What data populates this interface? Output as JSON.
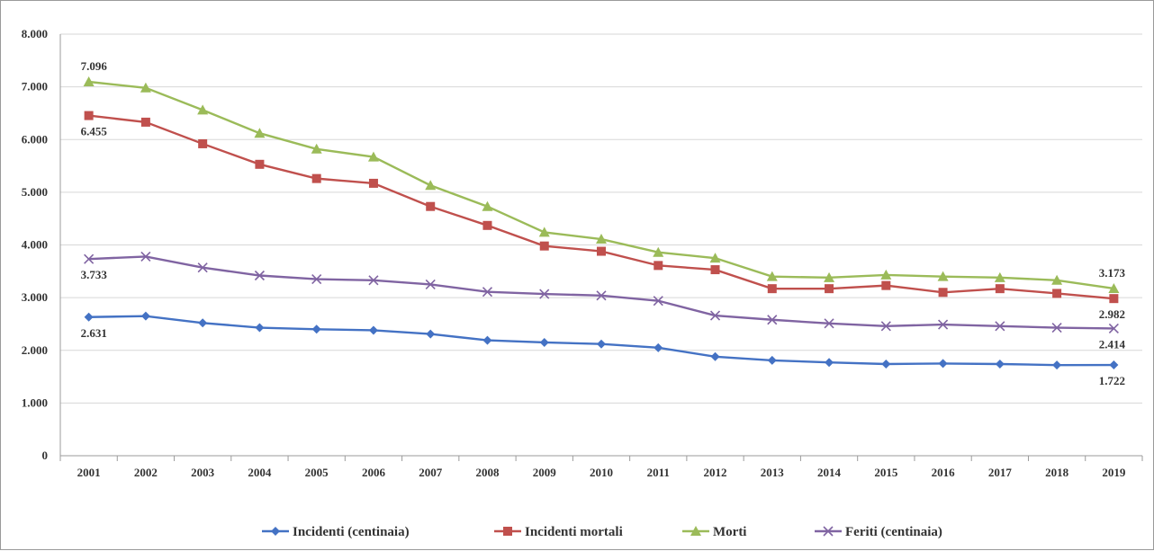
{
  "chart_data": {
    "type": "line",
    "categories": [
      "2001",
      "2002",
      "2003",
      "2004",
      "2005",
      "2006",
      "2007",
      "2008",
      "2009",
      "2010",
      "2011",
      "2012",
      "2013",
      "2014",
      "2015",
      "2016",
      "2017",
      "2018",
      "2019"
    ],
    "y_ticks": [
      "0",
      "1.000",
      "2.000",
      "3.000",
      "4.000",
      "5.000",
      "6.000",
      "7.000",
      "8.000"
    ],
    "ylim": [
      0,
      8000
    ],
    "grid": true,
    "legend_position": "bottom",
    "series": [
      {
        "name": "Incidenti (centinaia)",
        "color": "#4472c4",
        "marker": "diamond",
        "values": [
          2631,
          2650,
          2520,
          2430,
          2400,
          2380,
          2310,
          2190,
          2150,
          2120,
          2050,
          1880,
          1810,
          1770,
          1740,
          1750,
          1740,
          1720,
          1722
        ]
      },
      {
        "name": "Incidenti mortali",
        "color": "#c0504d",
        "marker": "square",
        "values": [
          6455,
          6330,
          5920,
          5530,
          5260,
          5170,
          4730,
          4370,
          3980,
          3880,
          3610,
          3530,
          3170,
          3170,
          3230,
          3100,
          3170,
          3080,
          2982
        ]
      },
      {
        "name": "Morti",
        "color": "#9bbb59",
        "marker": "triangle",
        "values": [
          7096,
          6980,
          6560,
          6120,
          5820,
          5670,
          5130,
          4730,
          4240,
          4110,
          3860,
          3750,
          3400,
          3380,
          3430,
          3400,
          3380,
          3330,
          3173
        ]
      },
      {
        "name": "Feriti (centinaia)",
        "color": "#8064a2",
        "marker": "x",
        "values": [
          3733,
          3780,
          3570,
          3420,
          3350,
          3330,
          3250,
          3110,
          3070,
          3040,
          2940,
          2660,
          2580,
          2510,
          2460,
          2490,
          2460,
          2430,
          2414
        ]
      }
    ],
    "annotations": [
      {
        "text": "7.096",
        "series": 2,
        "index": 0,
        "pos": "above"
      },
      {
        "text": "6.455",
        "series": 1,
        "index": 0,
        "pos": "below"
      },
      {
        "text": "3.733",
        "series": 3,
        "index": 0,
        "pos": "below"
      },
      {
        "text": "2.631",
        "series": 0,
        "index": 0,
        "pos": "below"
      },
      {
        "text": "3.173",
        "series": 2,
        "index": 18,
        "pos": "above"
      },
      {
        "text": "2.982",
        "series": 1,
        "index": 18,
        "pos": "below"
      },
      {
        "text": "2.414",
        "series": 3,
        "index": 18,
        "pos": "below"
      },
      {
        "text": "1.722",
        "series": 0,
        "index": 18,
        "pos": "below"
      }
    ]
  }
}
